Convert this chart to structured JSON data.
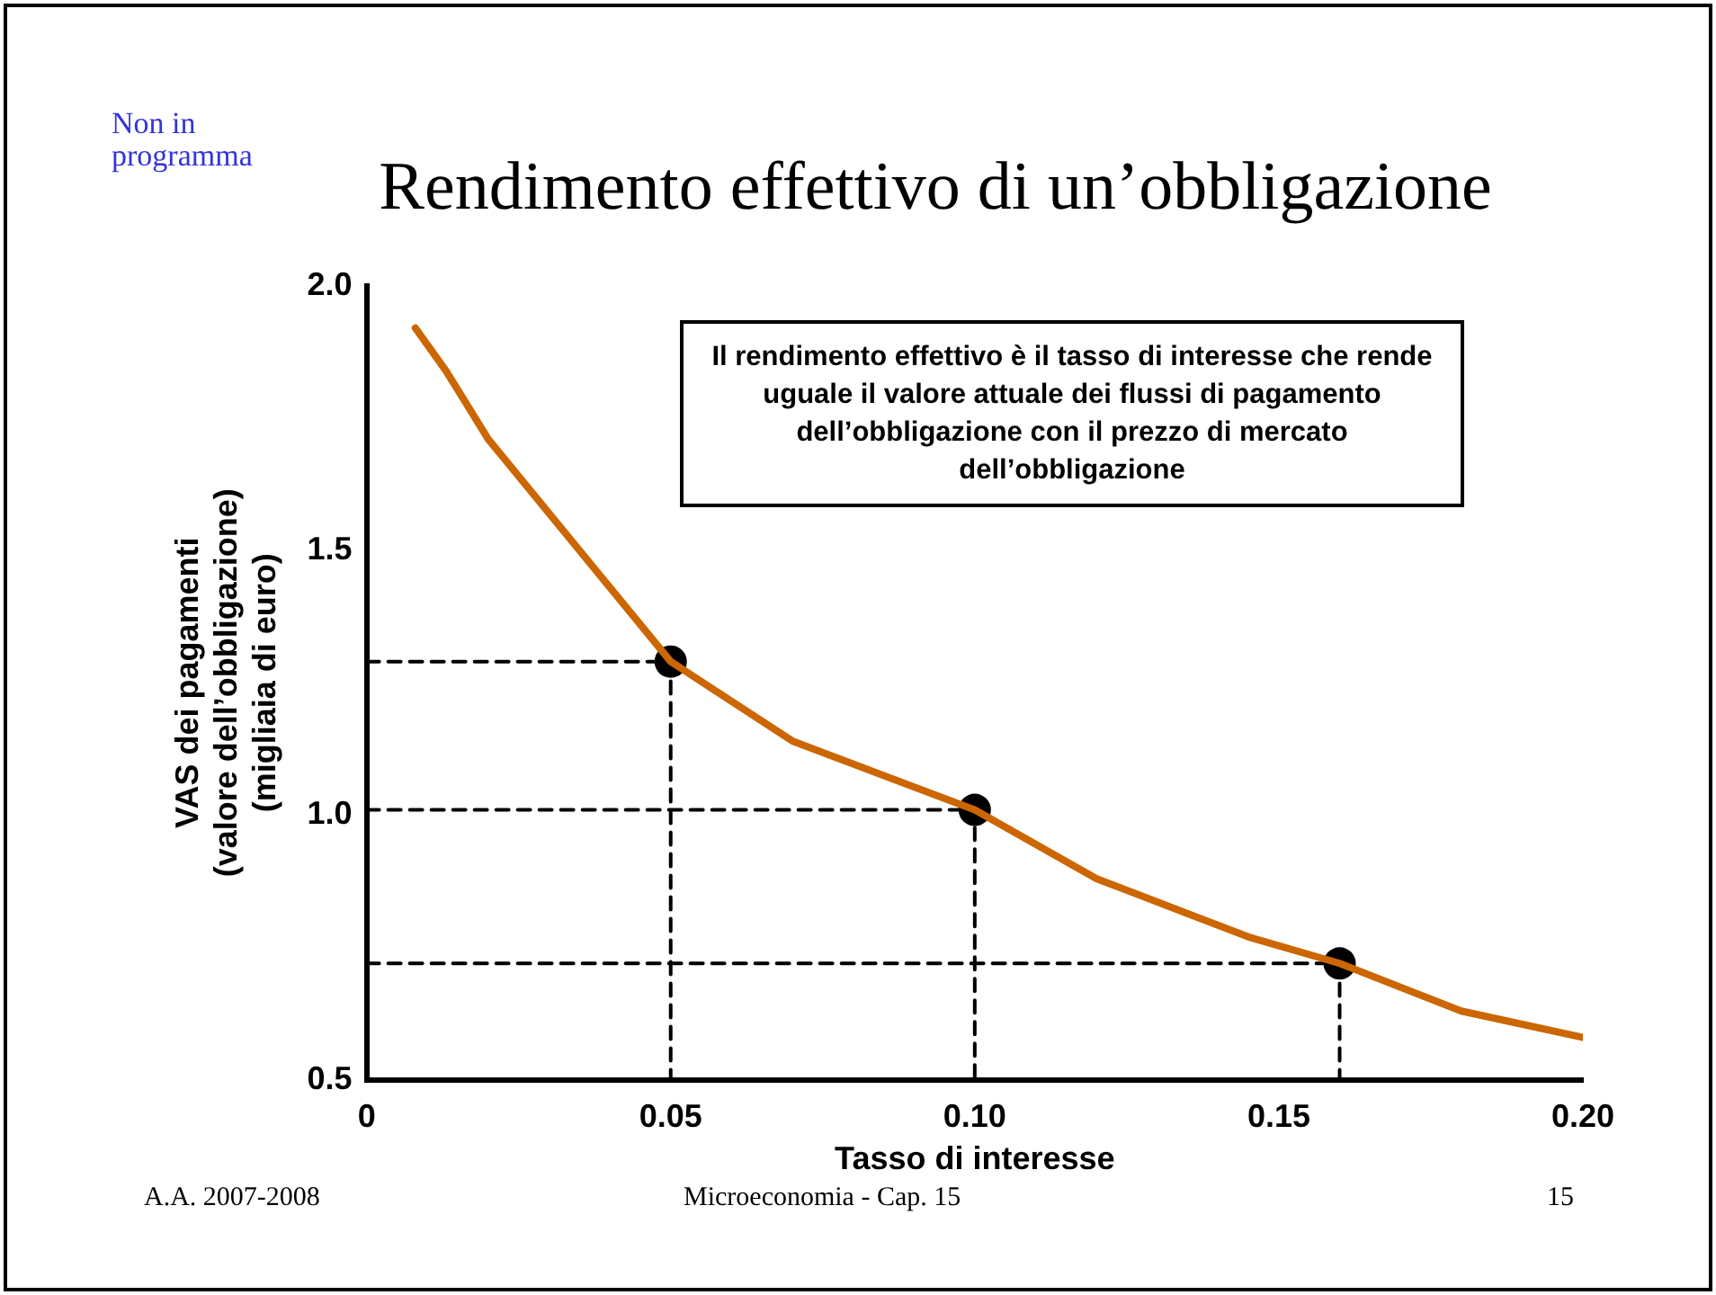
{
  "chart_data": {
    "type": "line",
    "title": "Rendimento effettivo di un’obbligazione",
    "xlabel": "Tasso di interesse",
    "ylabel": "VAS dei pagamenti\n(valore dell’obbligazione)\n(migliaia di euro)",
    "annotations": [
      "Non in programma",
      "Il rendimento effettivo è il tasso di interesse che rende uguale il valore attuale dei flussi di pagamento dell’obbligazione con il prezzo di mercato dell’obbligazione",
      "A.A. 2007-2008",
      "Microeconomia - Cap. 15",
      "15"
    ],
    "xlim": [
      0,
      0.2
    ],
    "xticks": [
      0,
      0.05,
      {
        "value": 0.1,
        "label": "0.10"
      },
      0.15,
      {
        "value": 0.2,
        "label": "0.20"
      }
    ],
    "ylim": [
      0.5,
      2.0
    ],
    "yticks": [
      0.5,
      {
        "value": 1,
        "label": "1.0"
      },
      1.5,
      {
        "value": 2,
        "label": "2.0"
      }
    ],
    "grid": false,
    "legend": false,
    "series": [
      {
        "type": "line",
        "color": "#cc6600",
        "marker": "none",
        "line_style": "solid",
        "x": [
          0.008,
          0.013,
          0.02,
          0.035,
          0.05,
          0.07,
          0.1,
          0.12,
          0.145,
          0.16,
          0.18,
          0.2
        ],
        "values": [
          1.92,
          1.84,
          1.71,
          1.5,
          1.29,
          1.14,
          1.01,
          0.88,
          0.77,
          0.72,
          0.63,
          0.58
        ]
      },
      {
        "type": "line",
        "color": "#000000",
        "marker": "none",
        "line_style": "dashed",
        "x": [
          0,
          0.05,
          0.05
        ],
        "values": [
          1.29,
          1.29,
          0.5
        ]
      },
      {
        "type": "line",
        "color": "#000000",
        "marker": "none",
        "line_style": "dashed",
        "x": [
          0,
          0.1,
          0.1
        ],
        "values": [
          1.01,
          1.01,
          0.5
        ]
      },
      {
        "type": "line",
        "color": "#000000",
        "marker": "none",
        "line_style": "dashed",
        "x": [
          0,
          0.16,
          0.16
        ],
        "values": [
          0.72,
          0.72,
          0.5
        ]
      },
      {
        "type": "scatter",
        "color": "#000000",
        "marker": "circle",
        "x": [
          0.05,
          0.1,
          0.16
        ],
        "values": [
          1.29,
          1.01,
          0.72
        ]
      }
    ]
  }
}
